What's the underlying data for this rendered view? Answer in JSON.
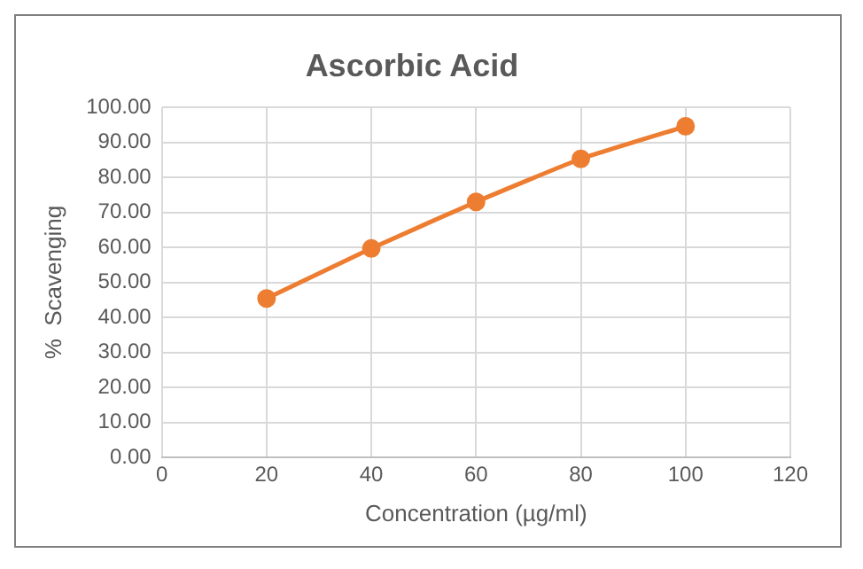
{
  "chart_data": {
    "type": "line",
    "title": "Ascorbic Acid",
    "xlabel": "Concentration (µg/ml)",
    "ylabel": "%  Scavenging",
    "x": [
      20,
      40,
      60,
      80,
      100
    ],
    "series": [
      {
        "color": "#ed7d31",
        "values": [
          45.4,
          59.7,
          73.0,
          85.3,
          94.6
        ]
      }
    ],
    "xlim": [
      0,
      120
    ],
    "xticks": [
      0,
      20,
      40,
      60,
      80,
      100,
      120
    ],
    "ylim": [
      0,
      100
    ],
    "yticks": [
      {
        "value": 0,
        "label": "0.00"
      },
      {
        "value": 10,
        "label": "10.00"
      },
      {
        "value": 20,
        "label": "20.00"
      },
      {
        "value": 30,
        "label": "30.00"
      },
      {
        "value": 40,
        "label": "40.00"
      },
      {
        "value": 50,
        "label": "50.00"
      },
      {
        "value": 60,
        "label": "60.00"
      },
      {
        "value": 70,
        "label": "70.00"
      },
      {
        "value": 80,
        "label": "80.00"
      },
      {
        "value": 90,
        "label": "90.00"
      },
      {
        "value": 100,
        "label": "100.00"
      }
    ],
    "grid": true,
    "marker": "circle",
    "line_style": "solid",
    "legend": false
  }
}
